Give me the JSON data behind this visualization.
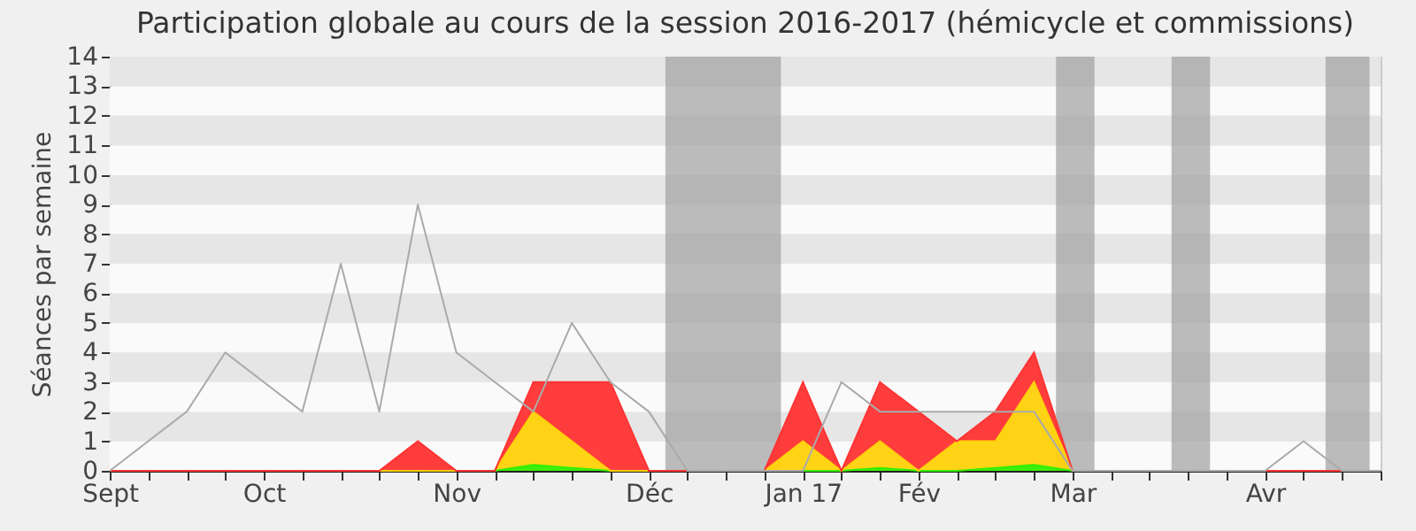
{
  "chart_data": {
    "type": "area",
    "stacked": true,
    "title": "Participation globale au cours de la session 2016-2017 (hémicycle et commissions)",
    "ylabel": "Séances par semaine",
    "x": [
      "2016-09-12",
      "2016-09-19",
      "2016-09-26",
      "2016-10-03",
      "2016-10-10",
      "2016-10-17",
      "2016-10-24",
      "2016-10-31",
      "2016-11-07",
      "2016-11-14",
      "2016-11-21",
      "2016-11-28",
      "2016-12-05",
      "2016-12-12",
      "2016-12-19",
      "2016-12-26",
      "2017-01-02",
      "2017-01-09",
      "2017-01-16",
      "2017-01-23",
      "2017-01-30",
      "2017-02-06",
      "2017-02-13",
      "2017-02-20",
      "2017-02-27",
      "2017-03-06",
      "2017-03-13",
      "2017-03-20",
      "2017-03-27",
      "2017-04-03",
      "2017-04-10",
      "2017-04-17",
      "2017-04-24",
      "2017-05-01"
    ],
    "series": [
      {
        "color": "#33ee00",
        "values": [
          0,
          0,
          0,
          0,
          0,
          0,
          0,
          0,
          0,
          0,
          0,
          0.2,
          0.1,
          0,
          0,
          0,
          0,
          0,
          0,
          0,
          0.1,
          0,
          0,
          0.1,
          0.2,
          0,
          0,
          0,
          0,
          0,
          0,
          0,
          0,
          0
        ]
      },
      {
        "color": "#ffd20a",
        "values": [
          0,
          0,
          0,
          0,
          0,
          0,
          0,
          0,
          0,
          0,
          0,
          1.8,
          0.9,
          0,
          0,
          0,
          0,
          0,
          1,
          0,
          0.9,
          0,
          1,
          0.9,
          2.8,
          0,
          0,
          0,
          0,
          0,
          0,
          0,
          0,
          0
        ]
      },
      {
        "color": "#ff3333",
        "values": [
          0,
          0,
          0,
          0,
          0,
          0,
          0,
          0,
          1,
          0,
          0,
          1,
          2,
          3,
          0,
          0,
          0,
          0,
          2,
          0,
          2,
          2,
          0,
          1,
          1,
          0,
          0,
          0,
          0,
          0,
          0,
          0,
          0,
          0
        ]
      },
      {
        "type": "line",
        "color": "#aaaaaa",
        "values": [
          0,
          1,
          2,
          4,
          3,
          2,
          7,
          2,
          9,
          4,
          3,
          2,
          5,
          3,
          2,
          0,
          0,
          0,
          0,
          3,
          2,
          2,
          2,
          2,
          2,
          0,
          0,
          0,
          0,
          0,
          0,
          1,
          0,
          0
        ]
      }
    ],
    "xlim": [
      "2016-09-12",
      "2017-05-01"
    ],
    "xticks": [
      {
        "value": "2016-09-12",
        "label": "Sept"
      },
      {
        "value": "2016-09-19",
        "label": null
      },
      {
        "value": "2016-09-26",
        "label": null
      },
      {
        "value": "2016-10-03",
        "label": null
      },
      {
        "value": "2016-10-10",
        "label": "Oct"
      },
      {
        "value": "2016-10-17",
        "label": null
      },
      {
        "value": "2016-10-24",
        "label": null
      },
      {
        "value": "2016-10-31",
        "label": null
      },
      {
        "value": "2016-11-07",
        "label": null
      },
      {
        "value": "2016-11-14",
        "label": "Nov"
      },
      {
        "value": "2016-11-21",
        "label": null
      },
      {
        "value": "2016-11-28",
        "label": null
      },
      {
        "value": "2016-12-05",
        "label": null
      },
      {
        "value": "2016-12-12",
        "label": null
      },
      {
        "value": "2016-12-19",
        "label": "Déc"
      },
      {
        "value": "2016-12-26",
        "label": null
      },
      {
        "value": "2017-01-02",
        "label": null
      },
      {
        "value": "2017-01-09",
        "label": null
      },
      {
        "value": "2017-01-16",
        "label": "Jan 17"
      },
      {
        "value": "2017-01-23",
        "label": null
      },
      {
        "value": "2017-01-30",
        "label": null
      },
      {
        "value": "2017-02-06",
        "label": "Fév"
      },
      {
        "value": "2017-02-13",
        "label": null
      },
      {
        "value": "2017-02-20",
        "label": null
      },
      {
        "value": "2017-02-27",
        "label": null
      },
      {
        "value": "2017-03-06",
        "label": "Mar"
      },
      {
        "value": "2017-03-13",
        "label": null
      },
      {
        "value": "2017-03-20",
        "label": null
      },
      {
        "value": "2017-03-27",
        "label": null
      },
      {
        "value": "2017-04-03",
        "label": null
      },
      {
        "value": "2017-04-10",
        "label": "Avr"
      },
      {
        "value": "2017-04-17",
        "label": null
      },
      {
        "value": "2017-04-24",
        "label": null
      },
      {
        "value": "2017-05-01",
        "label": null
      }
    ],
    "ylim": [
      0,
      14
    ],
    "yticks": [
      0,
      1,
      2,
      3,
      4,
      5,
      6,
      7,
      8,
      9,
      10,
      11,
      12,
      13,
      14
    ],
    "grid": "y",
    "bands": [
      {
        "axis": "x",
        "from": "2016-12-22",
        "to": "2017-01-12",
        "color": "#a0a0a0"
      },
      {
        "axis": "x",
        "from": "2017-03-03",
        "to": "2017-03-10",
        "color": "#a0a0a0"
      },
      {
        "axis": "x",
        "from": "2017-03-24",
        "to": "2017-03-31",
        "color": "#a0a0a0"
      },
      {
        "axis": "x",
        "from": "2017-04-21",
        "to": "2017-04-29",
        "color": "#a0a0a0"
      }
    ]
  }
}
